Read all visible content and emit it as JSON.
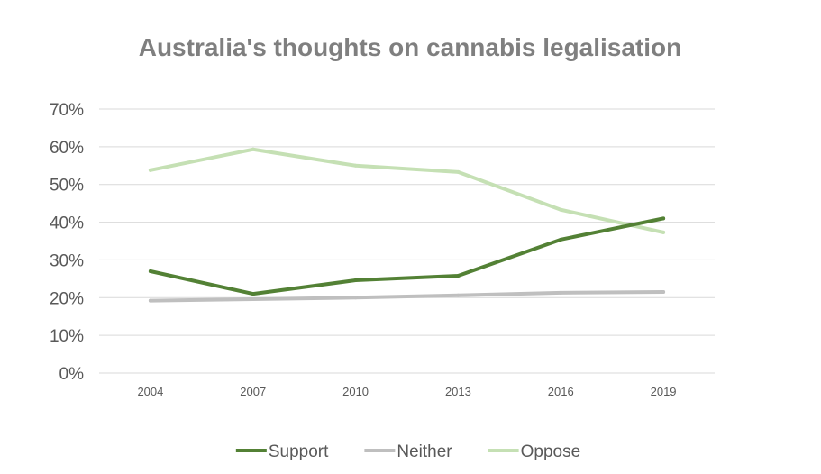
{
  "chart_data": {
    "type": "line",
    "title": "Australia's thoughts on cannabis legalisation",
    "xlabel": "",
    "ylabel": "",
    "x": [
      "2004",
      "2007",
      "2010",
      "2013",
      "2016",
      "2019"
    ],
    "ylim": [
      0,
      70
    ],
    "yticks": [
      "0%",
      "10%",
      "20%",
      "30%",
      "40%",
      "50%",
      "60%",
      "70%"
    ],
    "grid": true,
    "legend_position": "bottom",
    "series": [
      {
        "name": "Support",
        "color": "#538135",
        "values": [
          27,
          21,
          24.6,
          25.8,
          35.4,
          41
        ]
      },
      {
        "name": "Neither",
        "color": "#bfbfbf",
        "values": [
          19.2,
          19.6,
          20,
          20.6,
          21.3,
          21.5
        ]
      },
      {
        "name": "Oppose",
        "color": "#c5e0b4",
        "values": [
          53.8,
          59.3,
          55,
          53.3,
          43.3,
          37.3
        ]
      }
    ]
  }
}
